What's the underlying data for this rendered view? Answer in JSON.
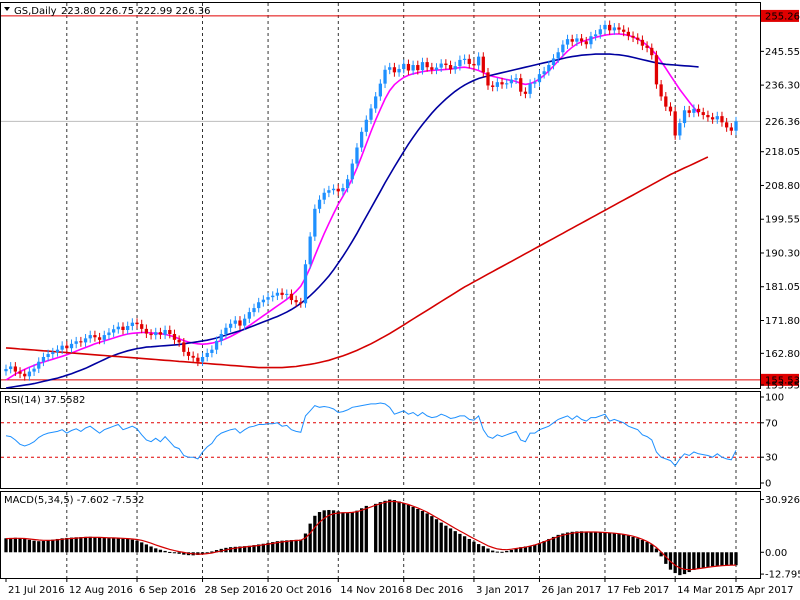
{
  "chart_data": [
    {
      "type": "candlestick",
      "title": "GS,Daily",
      "ohlc_readout": "223.80 226.75 222.99 226.36",
      "y_ticks": [
        "255.26",
        "245.55",
        "236.30",
        "226.36",
        "218.05",
        "208.80",
        "199.55",
        "190.30",
        "181.05",
        "171.80",
        "162.80",
        "155.53",
        "153.55"
      ],
      "x_ticks": [
        "21 Jul 2016",
        "12 Aug 2016",
        "6 Sep 2016",
        "28 Sep 2016",
        "20 Oct 2016",
        "14 Nov 2016",
        "8 Dec 2016",
        "3 Jan 2017",
        "26 Jan 2017",
        "17 Feb 2017",
        "14 Mar 2017",
        "5 Apr 2017"
      ],
      "ylim": [
        153.3,
        258.8
      ],
      "last_price": 226.36,
      "high_line": 255.26,
      "low_line": 155.53,
      "closes": [
        158.5,
        159.2,
        157.8,
        157.2,
        156.5,
        157.8,
        158.6,
        160.5,
        161.8,
        162.6,
        163.1,
        163.8,
        164.9,
        164.2,
        165.4,
        166.1,
        165.8,
        166.9,
        167.8,
        167.2,
        166.5,
        167.8,
        168.5,
        169.4,
        170.1,
        169.2,
        170.3,
        171.2,
        170.8,
        169.5,
        168.2,
        167.8,
        168.6,
        167.9,
        169.2,
        168.1,
        166.5,
        165.8,
        163.2,
        162.1,
        161.6,
        160.5,
        161.8,
        162.9,
        163.8,
        166.2,
        168.1,
        169.8,
        170.9,
        171.8,
        170.4,
        172.3,
        174.1,
        175.2,
        176.8,
        177.5,
        178.2,
        178.6,
        179.4,
        178.8,
        179.1,
        177.4,
        176.8,
        176.5,
        187.2,
        194.8,
        202.4,
        204.9,
        206.8,
        207.5,
        207.9,
        207.2,
        208.1,
        210.5,
        214.8,
        219.2,
        223.5,
        226.8,
        229.9,
        233.2,
        236.7,
        240.5,
        241.2,
        239.8,
        240.7,
        242.1,
        240.3,
        241.8,
        240.4,
        242.6,
        241.2,
        240.5,
        241.1,
        242.2,
        241.8,
        240.6,
        241.5,
        243.2,
        243.5,
        242.1,
        241.7,
        244.1,
        239.8,
        236.2,
        235.8,
        237.1,
        236.5,
        236.8,
        237.8,
        238.2,
        234.5,
        233.9,
        236.7,
        237.1,
        239.3,
        240.1,
        241.8,
        243.6,
        245.3,
        247.4,
        248.9,
        248.2,
        249.1,
        248.3,
        247.5,
        249.7,
        250.2,
        251.6,
        252.8,
        251.3,
        252.1,
        251.5,
        250.9,
        249.8,
        249.3,
        248.7,
        247.1,
        246.5,
        244.5,
        236.5,
        233.2,
        230.4,
        229.1,
        222.5,
        225.9,
        229.4,
        228.7,
        229.8,
        228.9,
        228.1,
        227.5,
        226.9,
        227.8,
        226.1,
        224.7,
        223.8,
        226.4
      ],
      "series": [
        {
          "name": "",
          "color": "#ff00ff",
          "values": [
            155.5,
            156.3,
            157.1,
            157.8,
            158.4,
            159.0,
            159.5,
            160.0,
            160.4,
            160.8,
            161.2,
            161.6,
            162.0,
            162.4,
            162.9,
            163.4,
            163.9,
            164.4,
            164.9,
            165.4,
            165.8,
            166.2,
            166.6,
            167.0,
            167.4,
            167.8,
            168.1,
            168.3,
            168.4,
            168.5,
            168.5,
            168.4,
            168.3,
            168.2,
            168.0,
            167.7,
            167.3,
            166.8,
            166.3,
            165.9,
            165.6,
            165.4,
            165.3,
            165.4,
            165.6,
            165.9,
            166.3,
            166.8,
            167.4,
            168.1,
            168.8,
            169.6,
            170.4,
            171.3,
            172.2,
            173.1,
            174.0,
            174.9,
            175.8,
            176.7,
            177.6,
            178.6,
            179.8,
            181.2,
            183.5,
            186.3,
            189.5,
            192.6,
            195.6,
            198.4,
            201.1,
            203.6,
            205.8,
            208.1,
            210.7,
            213.6,
            216.8,
            220.2,
            223.6,
            226.8,
            229.7,
            232.5,
            234.8,
            236.4,
            237.5,
            238.4,
            239.0,
            239.4,
            239.7,
            240.0,
            240.2,
            240.3,
            240.4,
            240.5,
            240.6,
            240.7,
            240.9,
            241.1,
            241.2,
            241.0,
            240.7,
            240.3,
            239.7,
            239.1,
            238.7,
            238.4,
            238.1,
            237.8,
            237.6,
            237.3,
            236.8,
            236.5,
            236.7,
            237.2,
            238.0,
            239.0,
            240.2,
            241.5,
            242.9,
            244.3,
            245.6,
            246.7,
            247.6,
            248.2,
            248.6,
            249.0,
            249.4,
            249.7,
            250.0,
            250.2,
            250.3,
            250.3,
            250.2,
            249.9,
            249.5,
            248.9,
            248.2,
            247.2,
            246.0,
            244.6,
            242.8,
            240.9,
            238.9,
            237.0,
            235.1,
            233.4,
            231.7,
            230.1,
            228.6
          ]
        },
        {
          "name": "",
          "color": "#0000a0",
          "values": [
            153.3,
            153.5,
            153.7,
            153.9,
            154.1,
            154.3,
            154.5,
            154.8,
            155.1,
            155.4,
            155.7,
            156.0,
            156.4,
            156.8,
            157.2,
            157.7,
            158.2,
            158.7,
            159.3,
            159.9,
            160.5,
            161.1,
            161.7,
            162.2,
            162.7,
            163.1,
            163.5,
            163.8,
            164.1,
            164.3,
            164.5,
            164.6,
            164.7,
            164.8,
            164.9,
            165.0,
            165.1,
            165.2,
            165.4,
            165.6,
            165.8,
            166.0,
            166.2,
            166.4,
            166.7,
            167.0,
            167.4,
            167.8,
            168.2,
            168.6,
            169.0,
            169.4,
            169.9,
            170.4,
            170.9,
            171.4,
            171.9,
            172.4,
            172.9,
            173.5,
            174.1,
            174.8,
            175.6,
            176.5,
            177.5,
            178.6,
            179.8,
            181.1,
            182.5,
            184.0,
            185.7,
            187.5,
            189.4,
            191.4,
            193.5,
            195.7,
            198.0,
            200.3,
            202.6,
            204.9,
            207.2,
            209.5,
            211.7,
            213.9,
            216.0,
            218.1,
            220.1,
            222.0,
            223.8,
            225.5,
            227.1,
            228.6,
            230.0,
            231.3,
            232.5,
            233.6,
            234.6,
            235.5,
            236.3,
            237.0,
            237.6,
            238.1,
            238.5,
            238.8,
            239.1,
            239.4,
            239.7,
            240.0,
            240.3,
            240.6,
            240.9,
            241.2,
            241.5,
            241.8,
            242.1,
            242.4,
            242.7,
            243.0,
            243.3,
            243.6,
            243.9,
            244.1,
            244.3,
            244.5,
            244.6,
            244.7,
            244.8,
            244.8,
            244.8,
            244.8,
            244.7,
            244.6,
            244.4,
            244.2,
            243.9,
            243.6,
            243.3,
            243.0,
            242.7,
            242.4,
            242.2,
            242.0,
            241.9,
            241.8,
            241.7,
            241.6,
            241.5,
            241.4,
            241.3
          ]
        },
        {
          "name": "",
          "color": "#d40000",
          "values": [
            164.3,
            164.2,
            164.1,
            164.0,
            163.9,
            163.8,
            163.7,
            163.6,
            163.5,
            163.4,
            163.3,
            163.2,
            163.1,
            163.0,
            162.9,
            162.8,
            162.7,
            162.6,
            162.5,
            162.4,
            162.3,
            162.2,
            162.1,
            162.0,
            161.9,
            161.8,
            161.7,
            161.6,
            161.5,
            161.4,
            161.3,
            161.2,
            161.1,
            161.0,
            160.9,
            160.8,
            160.7,
            160.6,
            160.5,
            160.4,
            160.3,
            160.2,
            160.1,
            160.0,
            159.9,
            159.8,
            159.7,
            159.6,
            159.5,
            159.4,
            159.3,
            159.2,
            159.1,
            159.0,
            158.9,
            158.9,
            158.9,
            158.9,
            158.9,
            158.9,
            159.0,
            159.1,
            159.2,
            159.4,
            159.6,
            159.8,
            160.0,
            160.3,
            160.6,
            160.9,
            161.3,
            161.7,
            162.1,
            162.6,
            163.1,
            163.6,
            164.2,
            164.8,
            165.4,
            166.1,
            166.8,
            167.5,
            168.2,
            169.0,
            169.8,
            170.6,
            171.4,
            172.2,
            173.0,
            173.8,
            174.6,
            175.4,
            176.2,
            177.0,
            177.8,
            178.6,
            179.4,
            180.2,
            181.0,
            181.7,
            182.4,
            183.1,
            183.8,
            184.5,
            185.2,
            185.9,
            186.6,
            187.3,
            188.0,
            188.7,
            189.4,
            190.1,
            190.8,
            191.5,
            192.2,
            192.9,
            193.6,
            194.3,
            195.0,
            195.7,
            196.4,
            197.1,
            197.8,
            198.5,
            199.2,
            199.9,
            200.6,
            201.3,
            202.0,
            202.7,
            203.4,
            204.1,
            204.8,
            205.5,
            206.2,
            206.9,
            207.6,
            208.3,
            209.0,
            209.7,
            210.4,
            211.1,
            211.8,
            212.4,
            213.0,
            213.6,
            214.2,
            214.8,
            215.4,
            216.0,
            216.6
          ]
        }
      ]
    },
    {
      "type": "line",
      "title": "RSI(14) 37.5582",
      "y_ticks": [
        "100",
        "70",
        "30",
        "0"
      ],
      "ylim": [
        0,
        100
      ],
      "levels": [
        70,
        30
      ],
      "color": "#1e90ff",
      "values": [
        55,
        54,
        50,
        45,
        43,
        45,
        48,
        53,
        56,
        58,
        59,
        60,
        62,
        58,
        61,
        63,
        60,
        64,
        66,
        62,
        58,
        62,
        64,
        66,
        68,
        62,
        64,
        66,
        63,
        56,
        50,
        48,
        52,
        48,
        54,
        48,
        42,
        40,
        32,
        30,
        30,
        28,
        36,
        42,
        46,
        54,
        58,
        60,
        62,
        63,
        58,
        62,
        65,
        66,
        68,
        68,
        69,
        69,
        70,
        66,
        67,
        62,
        60,
        59,
        78,
        84,
        90,
        88,
        89,
        88,
        86,
        82,
        83,
        85,
        88,
        89,
        90,
        91,
        92,
        92,
        93,
        92,
        88,
        80,
        82,
        84,
        80,
        82,
        78,
        82,
        78,
        76,
        77,
        80,
        78,
        75,
        76,
        78,
        78,
        74,
        73,
        78,
        62,
        54,
        52,
        56,
        54,
        56,
        58,
        60,
        50,
        48,
        58,
        58,
        62,
        64,
        66,
        70,
        74,
        76,
        78,
        74,
        78,
        74,
        72,
        76,
        76,
        78,
        80,
        72,
        74,
        72,
        70,
        66,
        64,
        62,
        56,
        54,
        50,
        36,
        30,
        28,
        26,
        20,
        28,
        34,
        32,
        36,
        34,
        33,
        32,
        30,
        34,
        30,
        28,
        27,
        38
      ]
    },
    {
      "type": "histogram",
      "title": "MACD(5,34,5) -7.602 -7.532",
      "y_ticks": [
        "30.926",
        "0.00",
        "-12.795"
      ],
      "ylim": [
        -14.5,
        33
      ],
      "signal_color": "#d40000",
      "values": [
        8.2,
        8.4,
        8.5,
        8.3,
        7.8,
        7.3,
        6.8,
        6.5,
        6.6,
        7.0,
        7.4,
        7.8,
        8.2,
        8.4,
        8.6,
        8.8,
        8.9,
        9.0,
        9.1,
        8.9,
        8.6,
        8.4,
        8.3,
        8.2,
        8.1,
        8.0,
        7.8,
        7.4,
        6.8,
        5.8,
        4.6,
        3.4,
        2.3,
        1.5,
        0.8,
        0.2,
        -0.4,
        -0.9,
        -1.4,
        -1.7,
        -1.8,
        -1.6,
        -1.0,
        -0.3,
        0.5,
        1.3,
        2.0,
        2.6,
        3.0,
        3.2,
        3.4,
        3.6,
        3.8,
        4.2,
        4.6,
        5.0,
        5.5,
        6.0,
        6.5,
        6.8,
        7.0,
        7.2,
        7.3,
        7.4,
        11.0,
        16.8,
        21.4,
        23.6,
        24.6,
        24.8,
        24.6,
        24.0,
        23.4,
        23.0,
        23.4,
        24.4,
        25.8,
        27.2,
        28.4,
        29.4,
        30.2,
        30.9,
        30.6,
        29.8,
        28.8,
        27.8,
        26.6,
        25.4,
        24.2,
        22.8,
        21.2,
        19.4,
        17.4,
        15.6,
        14.0,
        12.4,
        10.8,
        9.4,
        7.8,
        6.2,
        4.8,
        3.6,
        2.2,
        1.0,
        0.4,
        0.3,
        0.8,
        1.4,
        2.2,
        3.0,
        3.4,
        3.6,
        4.4,
        5.4,
        6.6,
        7.8,
        9.0,
        10.2,
        11.0,
        11.6,
        12.0,
        12.2,
        12.3,
        12.2,
        12.0,
        11.8,
        11.6,
        11.5,
        11.4,
        11.2,
        10.8,
        10.4,
        9.8,
        9.0,
        8.2,
        7.2,
        6.0,
        4.6,
        2.2,
        -2.4,
        -6.8,
        -10.2,
        -12.2,
        -13.4,
        -12.8,
        -11.6,
        -10.4,
        -9.6,
        -9.0,
        -8.6,
        -8.2,
        -8.0,
        -7.9,
        -7.8,
        -7.7,
        -7.6
      ],
      "signal": [
        8.0,
        8.1,
        8.2,
        8.2,
        8.1,
        7.8,
        7.5,
        7.2,
        7.0,
        7.0,
        7.1,
        7.3,
        7.6,
        7.9,
        8.1,
        8.3,
        8.5,
        8.7,
        8.8,
        8.8,
        8.7,
        8.6,
        8.5,
        8.4,
        8.3,
        8.2,
        8.0,
        7.8,
        7.5,
        7.0,
        6.2,
        5.3,
        4.3,
        3.4,
        2.5,
        1.7,
        1.0,
        0.4,
        -0.1,
        -0.6,
        -0.9,
        -1.1,
        -1.1,
        -0.8,
        -0.4,
        0.2,
        0.8,
        1.4,
        2.0,
        2.4,
        2.8,
        3.1,
        3.4,
        3.7,
        4.0,
        4.4,
        4.8,
        5.2,
        5.7,
        6.1,
        6.4,
        6.7,
        6.9,
        7.1,
        8.4,
        11.2,
        14.6,
        17.6,
        20.0,
        21.6,
        22.6,
        23.0,
        23.2,
        23.2,
        23.4,
        23.8,
        24.6,
        25.6,
        26.6,
        27.6,
        28.5,
        29.3,
        29.8,
        29.8,
        29.4,
        28.8,
        28.0,
        27.0,
        26.0,
        24.8,
        23.5,
        22.0,
        20.4,
        18.8,
        17.2,
        15.6,
        14.0,
        12.5,
        11.0,
        9.4,
        8.0,
        6.6,
        5.2,
        3.8,
        2.8,
        2.0,
        1.6,
        1.5,
        1.8,
        2.2,
        2.6,
        3.0,
        3.6,
        4.3,
        5.2,
        6.2,
        7.2,
        8.2,
        9.2,
        10.0,
        10.6,
        11.2,
        11.6,
        11.8,
        11.9,
        11.9,
        11.9,
        11.8,
        11.6,
        11.4,
        11.2,
        10.9,
        10.5,
        10.0,
        9.4,
        8.6,
        7.6,
        6.4,
        4.8,
        2.8,
        0.2,
        -2.6,
        -5.4,
        -7.6,
        -9.2,
        -10.0,
        -10.2,
        -10.0,
        -9.6,
        -9.2,
        -8.8,
        -8.4,
        -8.1,
        -7.9,
        -7.7,
        -7.6,
        -7.5
      ]
    }
  ]
}
